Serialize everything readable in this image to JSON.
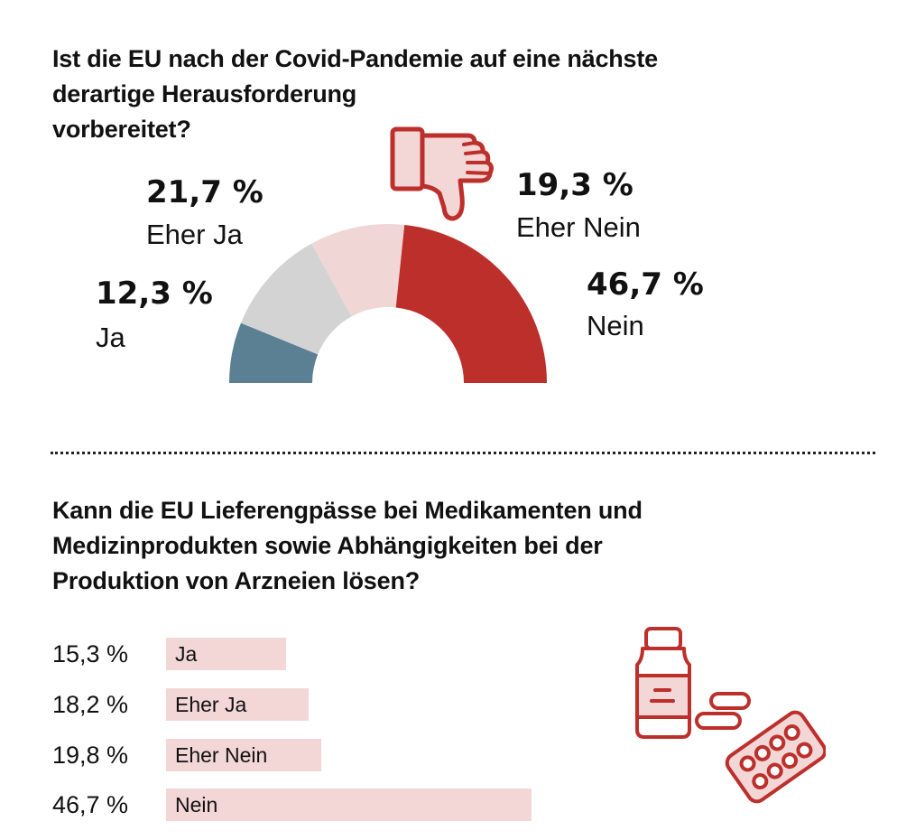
{
  "chart_data": [
    {
      "type": "pie",
      "variant": "half-donut",
      "title": "Ist die EU nach der Covid-Pandemie auf eine nächste derartige Herausforderung vorbereitet?",
      "title_lines": [
        "Ist die EU nach der Covid-Pandemie auf eine nächste",
        "derartige Herausforderung",
        "vorbereitet?"
      ],
      "slices": [
        {
          "label": "Ja",
          "value": 12.3,
          "display": "12,3 %",
          "color": "#5b7f93"
        },
        {
          "label": "Eher Ja",
          "value": 21.7,
          "display": "21,7 %",
          "color": "#d3d3d3"
        },
        {
          "label": "Eher Nein",
          "value": 19.3,
          "display": "19,3 %",
          "color": "#f1d6d6"
        },
        {
          "label": "Nein",
          "value": 46.7,
          "display": "46,7 %",
          "color": "#bd2f2a"
        }
      ],
      "icon": "thumbs-down-icon"
    },
    {
      "type": "bar",
      "orientation": "horizontal",
      "title": "Kann die EU Lieferengpässe bei Medikamenten und Medizinprodukten sowie Abhängigkeiten bei der Produktion von Arzneien lösen?",
      "title_lines": [
        "Kann die EU Lieferengpässe bei Medikamenten und",
        "Medizinprodukten sowie Abhängigkeiten bei der",
        "Produktion von Arzneien lösen?"
      ],
      "categories": [
        "Ja",
        "Eher Ja",
        "Eher Nein",
        "Nein"
      ],
      "values": [
        15.3,
        18.2,
        19.8,
        46.7
      ],
      "value_labels": [
        "15,3 %",
        "18,2 %",
        "19,8 %",
        "46,7 %"
      ],
      "bar_color": "#f3d6d6",
      "icon": "medicine-icon"
    }
  ],
  "colors": {
    "accent": "#bd2f2a",
    "icon_fill": "#f3d6d6",
    "divider": "#222222"
  }
}
